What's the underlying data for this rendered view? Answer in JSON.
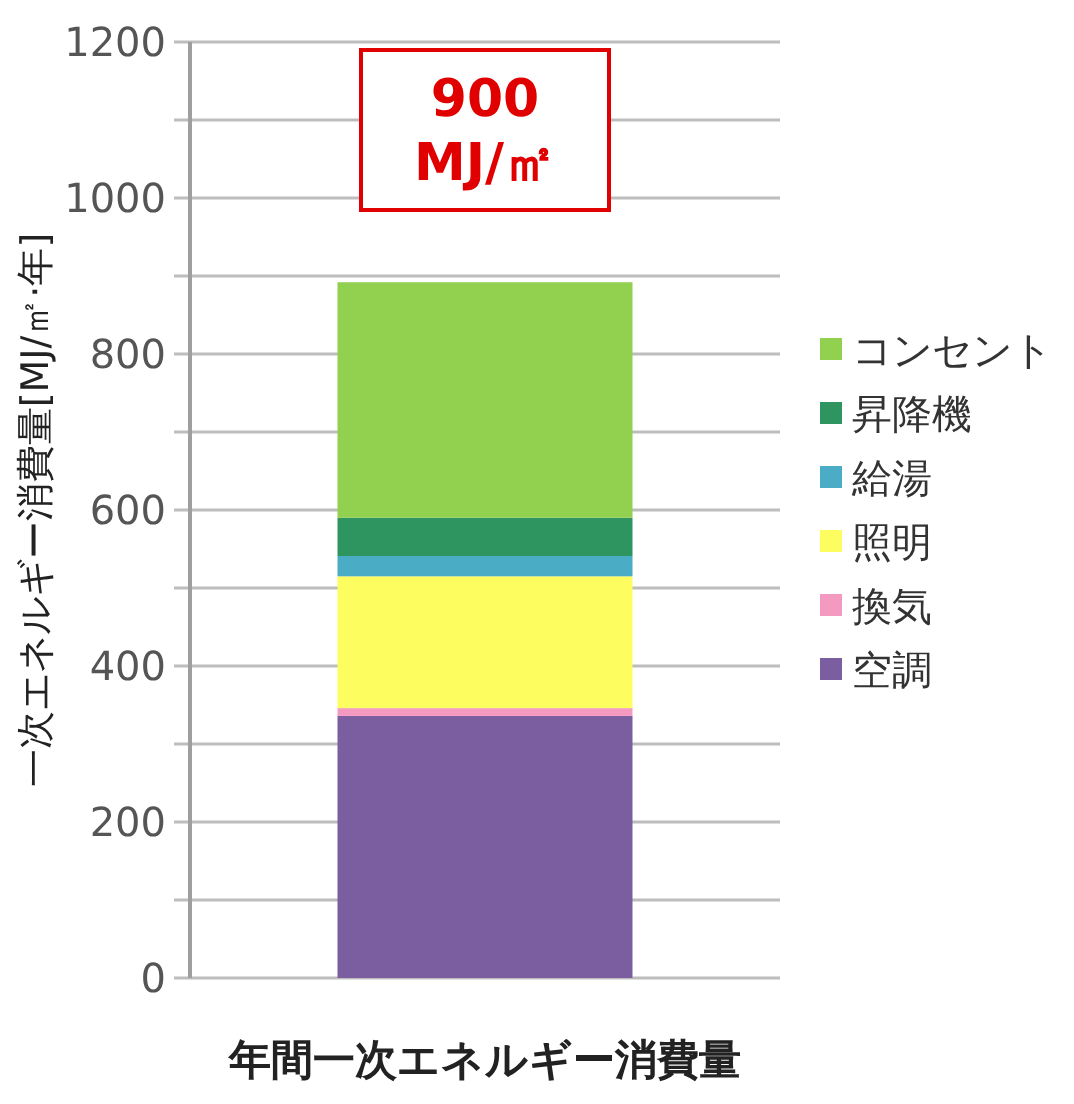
{
  "chart_data": {
    "type": "bar",
    "stacked": true,
    "ylabel": "一次エネルギー消費量[MJ/㎡·年]",
    "categories": [
      "年間一次エネルギー消費量"
    ],
    "series": [
      {
        "name": "空調",
        "color": "#7b5ea0",
        "values": [
          336
        ]
      },
      {
        "name": "換気",
        "color": "#f49ac1",
        "values": [
          10
        ]
      },
      {
        "name": "照明",
        "color": "#fdfd5f",
        "values": [
          169
        ]
      },
      {
        "name": "給湯",
        "color": "#4bacc6",
        "values": [
          26
        ]
      },
      {
        "name": "昇降機",
        "color": "#2e9460",
        "values": [
          49
        ]
      },
      {
        "name": "コンセント",
        "color": "#92d050",
        "values": [
          302
        ]
      }
    ],
    "annotations": [
      "900 MJ/㎡"
    ],
    "ylim": [
      0,
      1200
    ],
    "yticks": [
      0,
      {
        "value": 100,
        "label": null
      },
      200,
      {
        "value": 300,
        "label": null
      },
      400,
      {
        "value": 500,
        "label": null
      },
      600,
      {
        "value": 700,
        "label": null
      },
      800,
      {
        "value": 900,
        "label": null
      },
      1000,
      {
        "value": 1100,
        "label": null
      },
      1200
    ],
    "grid": "y",
    "legend": "right"
  }
}
